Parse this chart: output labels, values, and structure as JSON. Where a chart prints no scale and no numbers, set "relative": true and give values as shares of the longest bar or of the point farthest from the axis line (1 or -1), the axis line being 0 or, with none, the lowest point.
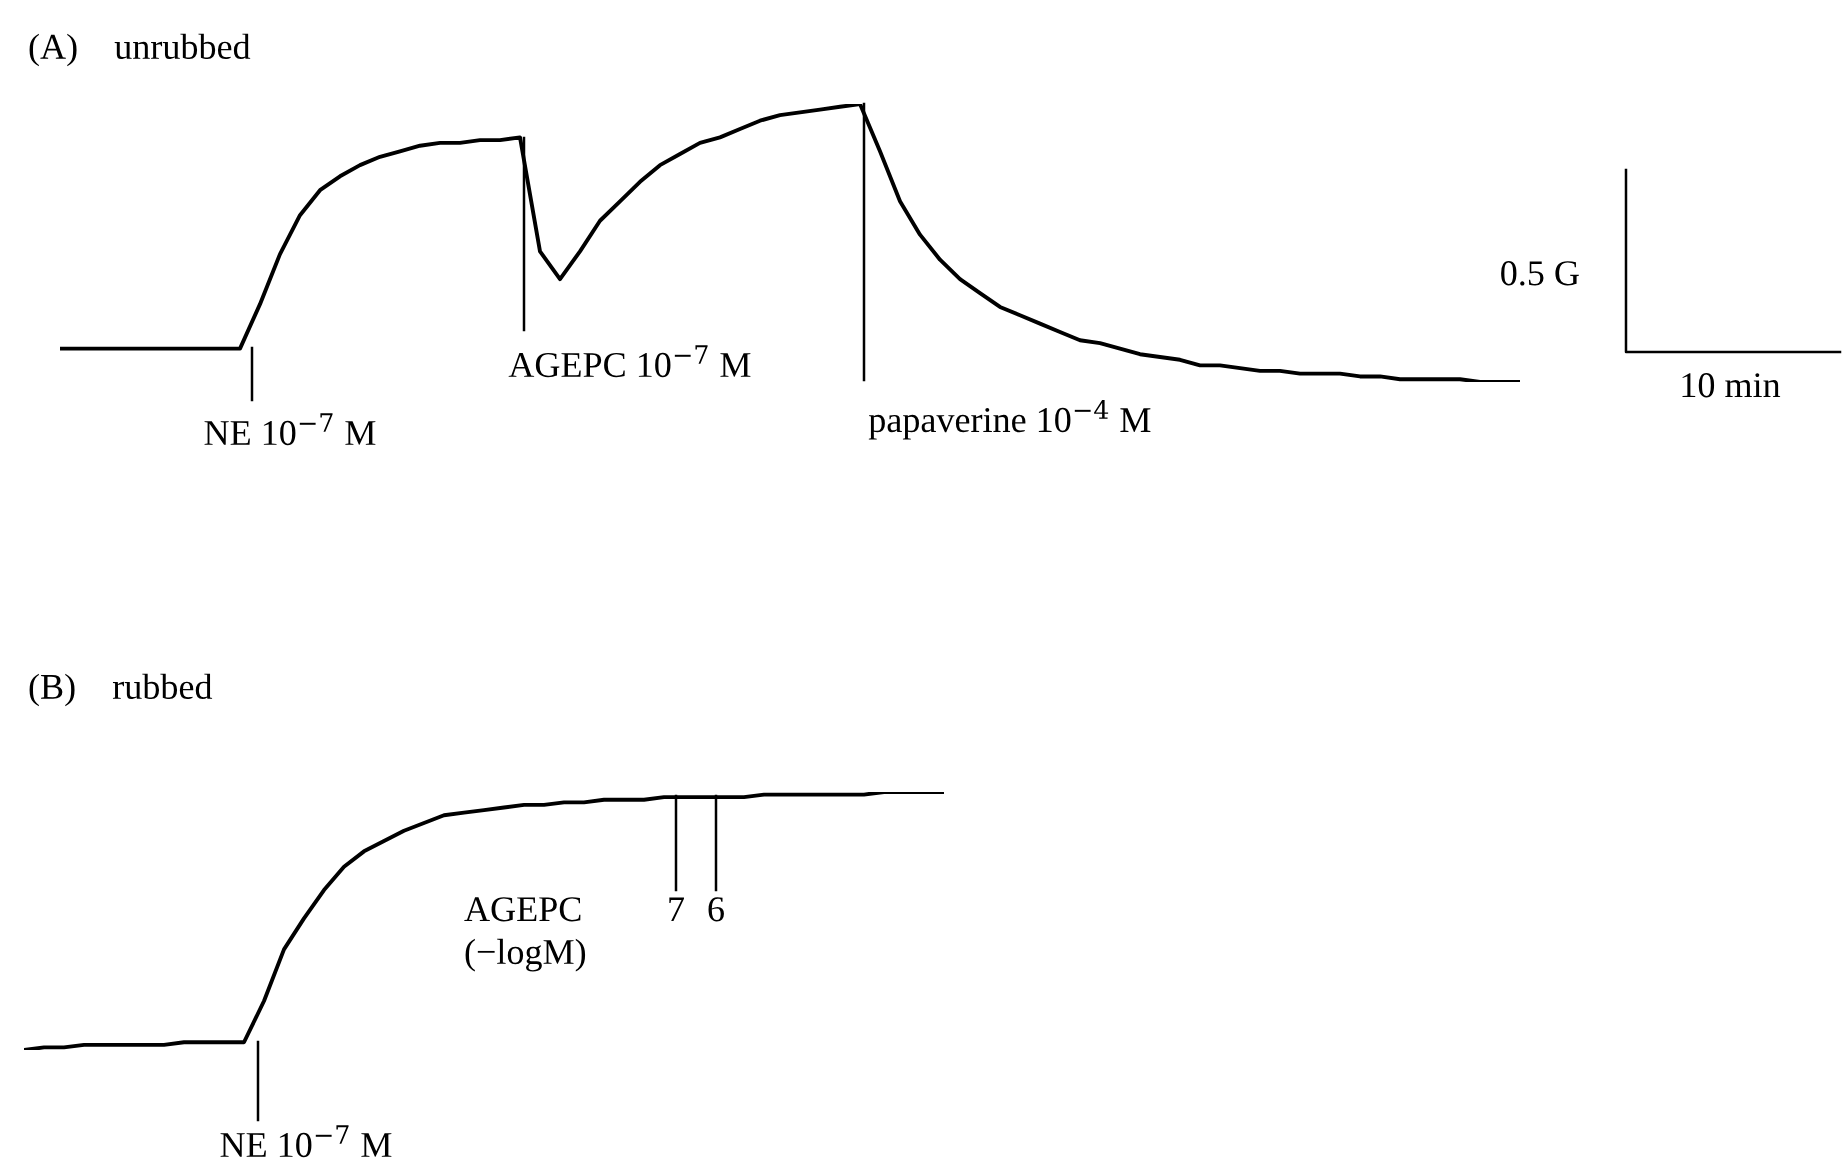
{
  "chart_data": [
    {
      "type": "line",
      "title": "(A)    unrubbed",
      "relative": true,
      "tick_labels": false,
      "categories": [
        null,
        null,
        null,
        null,
        null,
        null,
        null,
        null,
        null,
        null,
        null,
        null,
        null,
        null,
        null,
        null,
        null,
        null,
        null,
        null,
        null,
        null,
        null,
        null,
        null,
        null,
        null,
        null,
        null,
        null,
        null,
        null,
        null,
        null,
        null,
        null,
        null,
        null,
        null,
        null,
        null,
        null,
        null,
        null,
        null,
        null,
        null,
        null,
        null,
        null,
        null,
        null,
        null,
        null,
        null,
        null,
        null,
        null,
        null,
        null,
        null,
        null,
        null,
        null,
        null,
        null,
        null,
        null,
        null,
        null,
        null,
        null,
        null,
        null
      ],
      "series": [
        {
          "color": "#000000",
          "values": [
            0.12,
            0.12,
            0.12,
            0.12,
            0.12,
            0.12,
            0.12,
            0.12,
            0.12,
            0.12,
            0.28,
            0.46,
            0.6,
            0.69,
            0.74,
            0.78,
            0.81,
            0.83,
            0.85,
            0.86,
            0.86,
            0.87,
            0.87,
            0.88,
            0.47,
            0.37,
            0.47,
            0.58,
            0.65,
            0.72,
            0.78,
            0.82,
            0.86,
            0.88,
            0.91,
            0.94,
            0.96,
            0.97,
            0.98,
            0.99,
            1,
            0.83,
            0.65,
            0.53,
            0.44,
            0.37,
            0.32,
            0.27,
            0.24,
            0.21,
            0.18,
            0.15,
            0.14,
            0.12,
            0.1,
            0.09,
            0.08,
            0.06,
            0.06,
            0.05,
            0.04,
            0.04,
            0.03,
            0.03,
            0.03,
            0.02,
            0.02,
            0.01,
            0.01,
            0.01,
            0.01,
            0,
            0,
            0
          ]
        }
      ],
      "annotations": [
        "NE 10$^{−7}$ M",
        "AGEPC 10$^{−7}$ M",
        "papaverine 10$^{−4}$ M",
        "0.5 G",
        "10 min"
      ]
    },
    {
      "type": "line",
      "title": "(B)    rubbed",
      "relative": true,
      "tick_labels": false,
      "categories": [
        null,
        null,
        null,
        null,
        null,
        null,
        null,
        null,
        null,
        null,
        null,
        null,
        null,
        null,
        null,
        null,
        null,
        null,
        null,
        null,
        null,
        null,
        null,
        null,
        null,
        null,
        null,
        null,
        null,
        null,
        null,
        null,
        null,
        null,
        null,
        null,
        null,
        null,
        null,
        null,
        null,
        null,
        null,
        null,
        null,
        null,
        null
      ],
      "series": [
        {
          "color": "#000000",
          "values": [
            0,
            0.01,
            0.01,
            0.02,
            0.02,
            0.02,
            0.02,
            0.02,
            0.03,
            0.03,
            0.03,
            0.03,
            0.19,
            0.39,
            0.51,
            0.62,
            0.71,
            0.77,
            0.81,
            0.85,
            0.88,
            0.91,
            0.92,
            0.93,
            0.94,
            0.95,
            0.95,
            0.96,
            0.96,
            0.97,
            0.97,
            0.97,
            0.98,
            0.98,
            0.98,
            0.98,
            0.98,
            0.99,
            0.99,
            0.99,
            0.99,
            0.99,
            0.99,
            1,
            1,
            1,
            1
          ]
        }
      ],
      "annotations": [
        "NE 10$^{−7}$ M",
        "7",
        "6",
        "AGEPC\n(−logM)"
      ]
    }
  ]
}
